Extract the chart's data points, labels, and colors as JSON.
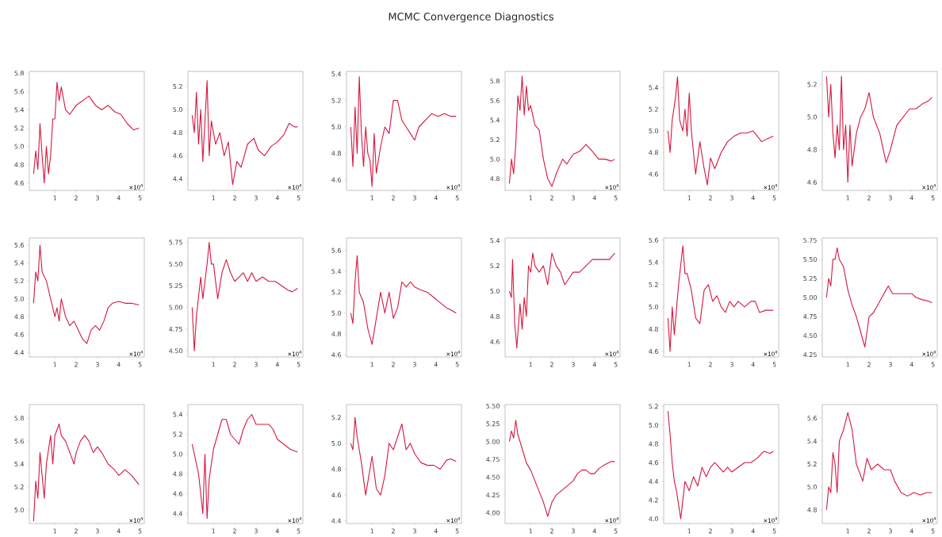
{
  "chart_data": [
    {
      "type": "other",
      "title": "MCMC Convergence Diagnostics"
    },
    {
      "type": "line",
      "annotations": [
        "×10$^{4}$"
      ],
      "color": "#d6173f",
      "xlim": [
        -0.2,
        5.2
      ],
      "ylim": [
        4.52,
        5.82
      ],
      "xticks": [
        1,
        2,
        3,
        4,
        5
      ],
      "yticks": [
        4.6,
        4.8,
        {
          "value": 5,
          "label": "5.0"
        },
        5.2,
        5.4,
        5.6,
        5.8
      ],
      "x": [
        0,
        0.1,
        0.2,
        0.3,
        0.4,
        0.5,
        0.6,
        0.7,
        0.8,
        0.9,
        1.0,
        1.1,
        1.2,
        1.3,
        1.5,
        1.7,
        2.0,
        2.3,
        2.6,
        2.9,
        3.2,
        3.5,
        3.8,
        4.1,
        4.4,
        4.7,
        4.95
      ],
      "values": [
        4.7,
        4.95,
        4.75,
        5.25,
        4.9,
        4.6,
        5.0,
        4.7,
        4.9,
        5.3,
        5.3,
        5.7,
        5.5,
        5.65,
        5.4,
        5.35,
        5.45,
        5.5,
        5.55,
        5.45,
        5.4,
        5.45,
        5.38,
        5.35,
        5.25,
        5.18,
        5.2
      ]
    },
    {
      "type": "line",
      "annotations": [
        "×10$^{4}$"
      ],
      "color": "#d6173f",
      "xlim": [
        -0.2,
        5.2
      ],
      "ylim": [
        4.3,
        5.33
      ],
      "xticks": [
        1,
        2,
        3,
        4,
        5
      ],
      "yticks": [
        4.4,
        4.6,
        4.8,
        {
          "value": 5,
          "label": "5.0"
        },
        5.2
      ],
      "x": [
        0,
        0.1,
        0.2,
        0.3,
        0.4,
        0.5,
        0.6,
        0.7,
        0.8,
        0.9,
        1.1,
        1.3,
        1.5,
        1.7,
        1.9,
        2.1,
        2.3,
        2.6,
        2.9,
        3.1,
        3.4,
        3.7,
        4.0,
        4.3,
        4.55,
        4.8,
        4.95
      ],
      "values": [
        4.95,
        4.8,
        5.15,
        4.7,
        5.0,
        4.55,
        4.9,
        5.25,
        4.6,
        4.9,
        4.7,
        4.8,
        4.6,
        4.72,
        4.35,
        4.55,
        4.5,
        4.7,
        4.75,
        4.65,
        4.6,
        4.68,
        4.72,
        4.78,
        4.88,
        4.85,
        4.85
      ]
    },
    {
      "type": "line",
      "annotations": [
        "×10$^{4}$"
      ],
      "color": "#d6173f",
      "xlim": [
        -0.2,
        5.2
      ],
      "ylim": [
        4.52,
        5.42
      ],
      "xticks": [
        1,
        2,
        3,
        4,
        5
      ],
      "yticks": [
        4.6,
        4.8,
        {
          "value": 5,
          "label": "5.0"
        },
        5.2,
        5.4
      ],
      "x": [
        0,
        0.1,
        0.2,
        0.3,
        0.4,
        0.5,
        0.6,
        0.7,
        0.8,
        0.9,
        1.0,
        1.1,
        1.2,
        1.4,
        1.6,
        1.8,
        2.0,
        2.2,
        2.4,
        2.6,
        2.8,
        3.0,
        3.2,
        3.5,
        3.8,
        4.1,
        4.4,
        4.7,
        4.95
      ],
      "values": [
        5.0,
        4.7,
        5.15,
        4.8,
        5.38,
        4.95,
        4.7,
        5.0,
        4.8,
        4.75,
        4.55,
        4.95,
        4.65,
        4.85,
        5.0,
        4.95,
        5.2,
        5.2,
        5.05,
        5.0,
        4.95,
        4.9,
        5.0,
        5.05,
        5.1,
        5.08,
        5.1,
        5.08,
        5.08
      ]
    },
    {
      "type": "line",
      "annotations": [
        "×10$^{4}$"
      ],
      "color": "#d6173f",
      "xlim": [
        -0.2,
        5.2
      ],
      "ylim": [
        4.68,
        5.9
      ],
      "xticks": [
        1,
        2,
        3,
        4,
        5
      ],
      "yticks": [
        4.8,
        {
          "value": 5,
          "label": "5.0"
        },
        5.2,
        5.4,
        5.6,
        5.8
      ],
      "x": [
        0,
        0.1,
        0.2,
        0.3,
        0.4,
        0.5,
        0.6,
        0.7,
        0.8,
        0.9,
        1.0,
        1.2,
        1.4,
        1.6,
        1.8,
        2.0,
        2.2,
        2.5,
        2.7,
        3.0,
        3.3,
        3.6,
        3.9,
        4.2,
        4.5,
        4.8,
        4.95
      ],
      "values": [
        4.75,
        5.0,
        4.85,
        5.15,
        5.65,
        5.5,
        5.85,
        5.45,
        5.75,
        5.5,
        5.55,
        5.35,
        5.3,
        5.0,
        4.8,
        4.72,
        4.85,
        5.0,
        4.95,
        5.05,
        5.08,
        5.15,
        5.08,
        5.0,
        5.0,
        4.98,
        5.0
      ]
    },
    {
      "type": "line",
      "annotations": [
        "×10$^{4}$"
      ],
      "color": "#d6173f",
      "xlim": [
        -0.2,
        5.2
      ],
      "ylim": [
        4.45,
        5.55
      ],
      "xticks": [
        1,
        2,
        3,
        4,
        5
      ],
      "yticks": [
        4.6,
        4.8,
        {
          "value": 5,
          "label": "5.0"
        },
        5.2,
        5.4
      ],
      "x": [
        0,
        0.1,
        0.2,
        0.35,
        0.45,
        0.55,
        0.7,
        0.8,
        0.9,
        1.0,
        1.1,
        1.2,
        1.3,
        1.5,
        1.7,
        1.85,
        2.0,
        2.2,
        2.5,
        2.8,
        3.1,
        3.4,
        3.7,
        4.0,
        4.2,
        4.4,
        4.7,
        4.95
      ],
      "values": [
        5.0,
        4.8,
        5.1,
        5.3,
        5.5,
        5.1,
        5.0,
        5.2,
        4.95,
        5.35,
        5.0,
        4.8,
        4.6,
        4.9,
        4.65,
        4.5,
        4.75,
        4.65,
        4.8,
        4.9,
        4.95,
        4.98,
        4.98,
        5.0,
        4.95,
        4.9,
        4.93,
        4.95
      ]
    },
    {
      "type": "line",
      "annotations": [
        "×10$^{4}$"
      ],
      "color": "#d6173f",
      "xlim": [
        -0.2,
        5.2
      ],
      "ylim": [
        4.55,
        5.28
      ],
      "xticks": [
        1,
        2,
        3,
        4,
        5
      ],
      "yticks": [
        4.6,
        4.8,
        {
          "value": 5,
          "label": "5.0"
        },
        5.2
      ],
      "x": [
        0,
        0.1,
        0.2,
        0.3,
        0.4,
        0.5,
        0.6,
        0.7,
        0.8,
        0.9,
        1.0,
        1.1,
        1.2,
        1.4,
        1.6,
        1.8,
        2.0,
        2.2,
        2.5,
        2.8,
        3.0,
        3.3,
        3.6,
        3.9,
        4.2,
        4.5,
        4.8,
        4.95
      ],
      "values": [
        5.25,
        5.0,
        5.2,
        4.9,
        4.75,
        4.95,
        4.8,
        5.25,
        4.8,
        4.95,
        4.6,
        4.95,
        4.7,
        4.9,
        5.0,
        5.05,
        5.15,
        5.0,
        4.9,
        4.72,
        4.8,
        4.95,
        5.0,
        5.05,
        5.05,
        5.08,
        5.1,
        5.12
      ]
    },
    {
      "type": "line",
      "annotations": [
        "×10$^{4}$"
      ],
      "color": "#d6173f",
      "xlim": [
        -0.2,
        5.2
      ],
      "ylim": [
        4.35,
        5.68
      ],
      "xticks": [
        1,
        2,
        3,
        4,
        5
      ],
      "yticks": [
        4.4,
        4.6,
        4.8,
        {
          "value": 5,
          "label": "5.0"
        },
        5.2,
        5.4,
        5.6
      ],
      "x": [
        0,
        0.1,
        0.2,
        0.3,
        0.4,
        0.6,
        0.8,
        1.0,
        1.1,
        1.2,
        1.3,
        1.5,
        1.7,
        1.9,
        2.1,
        2.3,
        2.5,
        2.7,
        2.9,
        3.1,
        3.3,
        3.5,
        3.7,
        4.0,
        4.3,
        4.6,
        4.95
      ],
      "values": [
        4.95,
        5.3,
        5.2,
        5.6,
        5.3,
        5.2,
        5.0,
        4.8,
        4.9,
        4.75,
        5.0,
        4.8,
        4.7,
        4.75,
        4.65,
        4.55,
        4.5,
        4.65,
        4.7,
        4.65,
        4.75,
        4.9,
        4.95,
        4.97,
        4.95,
        4.95,
        4.93
      ]
    },
    {
      "type": "line",
      "annotations": [
        "×10$^{4}$"
      ],
      "color": "#d6173f",
      "xlim": [
        -0.2,
        5.2
      ],
      "ylim": [
        4.43,
        5.8
      ],
      "xticks": [
        1,
        2,
        3,
        4,
        5
      ],
      "yticks": [
        {
          "value": 4.5,
          "label": "4.50"
        },
        4.75,
        {
          "value": 5,
          "label": "5.00"
        },
        5.25,
        {
          "value": 5.5,
          "label": "5.50"
        },
        5.75
      ],
      "x": [
        0,
        0.1,
        0.2,
        0.4,
        0.5,
        0.6,
        0.7,
        0.8,
        0.9,
        1.0,
        1.2,
        1.4,
        1.6,
        1.8,
        2.0,
        2.2,
        2.4,
        2.6,
        2.8,
        3.0,
        3.3,
        3.6,
        3.9,
        4.2,
        4.5,
        4.7,
        4.95
      ],
      "values": [
        5.0,
        4.5,
        4.9,
        5.35,
        5.1,
        5.3,
        5.5,
        5.75,
        5.5,
        5.5,
        5.1,
        5.4,
        5.55,
        5.4,
        5.3,
        5.35,
        5.4,
        5.3,
        5.4,
        5.3,
        5.35,
        5.3,
        5.3,
        5.25,
        5.2,
        5.18,
        5.22
      ]
    },
    {
      "type": "line",
      "annotations": [
        "×10$^{4}$"
      ],
      "color": "#d6173f",
      "xlim": [
        -0.2,
        5.2
      ],
      "ylim": [
        4.58,
        5.72
      ],
      "xticks": [
        1,
        2,
        3,
        4,
        5
      ],
      "yticks": [
        4.6,
        4.8,
        {
          "value": 5,
          "label": "5.0"
        },
        5.2,
        5.4,
        5.6
      ],
      "x": [
        0,
        0.1,
        0.2,
        0.3,
        0.4,
        0.6,
        0.8,
        1.0,
        1.2,
        1.4,
        1.6,
        1.8,
        2.0,
        2.2,
        2.4,
        2.6,
        2.8,
        3.0,
        3.3,
        3.6,
        3.9,
        4.2,
        4.5,
        4.7,
        4.95
      ],
      "values": [
        5.0,
        4.9,
        5.3,
        5.55,
        5.2,
        5.1,
        4.85,
        4.7,
        4.95,
        5.2,
        5.0,
        5.2,
        4.95,
        5.05,
        5.3,
        5.25,
        5.3,
        5.25,
        5.22,
        5.2,
        5.15,
        5.1,
        5.05,
        5.03,
        5.0
      ]
    },
    {
      "type": "line",
      "annotations": [
        "×10$^{4}$"
      ],
      "color": "#d6173f",
      "xlim": [
        -0.2,
        5.2
      ],
      "ylim": [
        4.48,
        5.42
      ],
      "xticks": [
        1,
        2,
        3,
        4,
        5
      ],
      "yticks": [
        4.6,
        4.8,
        {
          "value": 5,
          "label": "5.0"
        },
        5.2,
        5.4
      ],
      "x": [
        0,
        0.1,
        0.15,
        0.25,
        0.35,
        0.5,
        0.6,
        0.7,
        0.8,
        0.9,
        1.0,
        1.1,
        1.2,
        1.4,
        1.6,
        1.8,
        2.0,
        2.2,
        2.4,
        2.6,
        2.8,
        3.0,
        3.3,
        3.6,
        3.9,
        4.2,
        4.5,
        4.7,
        4.95
      ],
      "values": [
        5.0,
        4.95,
        5.25,
        4.75,
        4.55,
        4.9,
        4.7,
        4.95,
        4.8,
        5.2,
        5.15,
        5.3,
        5.2,
        5.15,
        5.2,
        5.05,
        5.3,
        5.2,
        5.15,
        5.05,
        5.1,
        5.15,
        5.15,
        5.2,
        5.25,
        5.25,
        5.25,
        5.25,
        5.3
      ]
    },
    {
      "type": "line",
      "annotations": [
        "×10$^{4}$"
      ],
      "color": "#d6173f",
      "xlim": [
        -0.2,
        5.2
      ],
      "ylim": [
        4.55,
        5.62
      ],
      "xticks": [
        1,
        2,
        3,
        4,
        5
      ],
      "yticks": [
        4.6,
        4.8,
        {
          "value": 5,
          "label": "5.0"
        },
        5.2,
        5.4,
        5.6
      ],
      "x": [
        0,
        0.1,
        0.2,
        0.3,
        0.5,
        0.7,
        0.8,
        0.9,
        1.1,
        1.3,
        1.5,
        1.7,
        1.9,
        2.1,
        2.3,
        2.5,
        2.7,
        2.9,
        3.1,
        3.3,
        3.6,
        3.9,
        4.1,
        4.3,
        4.6,
        4.95
      ],
      "values": [
        4.9,
        4.6,
        5.0,
        4.75,
        5.2,
        5.55,
        5.3,
        5.3,
        5.15,
        4.9,
        4.85,
        5.15,
        5.2,
        5.05,
        5.1,
        5.0,
        4.95,
        5.05,
        5.0,
        5.05,
        5.0,
        5.05,
        5.05,
        4.95,
        4.97,
        4.97
      ]
    },
    {
      "type": "line",
      "annotations": [
        "×10$^{4}$"
      ],
      "color": "#d6173f",
      "xlim": [
        -0.2,
        5.2
      ],
      "ylim": [
        4.22,
        5.78
      ],
      "xticks": [
        1,
        2,
        3,
        4,
        5
      ],
      "yticks": [
        4.25,
        {
          "value": 4.5,
          "label": "4.50"
        },
        4.75,
        {
          "value": 5,
          "label": "5.00"
        },
        5.25,
        {
          "value": 5.5,
          "label": "5.50"
        },
        5.75
      ],
      "x": [
        0,
        0.1,
        0.2,
        0.3,
        0.4,
        0.5,
        0.6,
        0.8,
        1.0,
        1.2,
        1.4,
        1.6,
        1.8,
        2.0,
        2.2,
        2.5,
        2.8,
        2.9,
        3.1,
        3.4,
        3.7,
        4.0,
        4.2,
        4.5,
        4.8,
        4.95
      ],
      "values": [
        5.0,
        5.25,
        5.15,
        5.5,
        5.5,
        5.65,
        5.5,
        5.4,
        5.1,
        4.9,
        4.75,
        4.55,
        4.35,
        4.75,
        4.8,
        4.95,
        5.1,
        5.15,
        5.05,
        5.05,
        5.05,
        5.05,
        5.0,
        4.97,
        4.95,
        4.93
      ]
    },
    {
      "type": "line",
      "annotations": [
        "×10$^{4}$"
      ],
      "color": "#d6173f",
      "xlim": [
        -0.2,
        5.2
      ],
      "ylim": [
        4.88,
        5.92
      ],
      "xticks": [
        1,
        2,
        3,
        4,
        5
      ],
      "yticks": [
        {
          "value": 5,
          "label": "5.0"
        },
        5.2,
        5.4,
        5.6,
        5.8
      ],
      "x": [
        0,
        0.1,
        0.2,
        0.3,
        0.4,
        0.5,
        0.6,
        0.8,
        0.9,
        1.0,
        1.1,
        1.2,
        1.3,
        1.5,
        1.7,
        1.9,
        2.0,
        2.2,
        2.4,
        2.6,
        2.8,
        3.0,
        3.2,
        3.5,
        3.8,
        4.0,
        4.3,
        4.6,
        4.95
      ],
      "values": [
        4.9,
        5.25,
        5.1,
        5.5,
        5.3,
        5.1,
        5.4,
        5.65,
        5.4,
        5.65,
        5.7,
        5.75,
        5.65,
        5.6,
        5.5,
        5.4,
        5.5,
        5.6,
        5.65,
        5.6,
        5.5,
        5.55,
        5.5,
        5.4,
        5.35,
        5.3,
        5.35,
        5.3,
        5.22
      ]
    },
    {
      "type": "line",
      "annotations": [
        "×10$^{4}$"
      ],
      "color": "#d6173f",
      "xlim": [
        -0.2,
        5.2
      ],
      "ylim": [
        4.3,
        5.5
      ],
      "xticks": [
        1,
        2,
        3,
        4,
        5
      ],
      "yticks": [
        4.4,
        4.6,
        4.8,
        {
          "value": 5,
          "label": "5.0"
        },
        5.2,
        5.4
      ],
      "x": [
        0,
        0.1,
        0.3,
        0.4,
        0.5,
        0.6,
        0.7,
        0.8,
        1.0,
        1.2,
        1.4,
        1.6,
        1.8,
        2.0,
        2.2,
        2.4,
        2.6,
        2.8,
        3.0,
        3.2,
        3.4,
        3.6,
        3.8,
        4.0,
        4.3,
        4.6,
        4.95
      ],
      "values": [
        5.1,
        5.0,
        4.8,
        4.6,
        4.4,
        5.0,
        4.35,
        4.75,
        5.05,
        5.2,
        5.35,
        5.35,
        5.2,
        5.15,
        5.1,
        5.25,
        5.35,
        5.4,
        5.3,
        5.3,
        5.3,
        5.3,
        5.25,
        5.15,
        5.1,
        5.05,
        5.02
      ]
    },
    {
      "type": "line",
      "annotations": [
        "×10$^{4}$"
      ],
      "color": "#d6173f",
      "xlim": [
        -0.2,
        5.2
      ],
      "ylim": [
        4.38,
        5.3
      ],
      "xticks": [
        1,
        2,
        3,
        4,
        5
      ],
      "yticks": [
        4.4,
        4.6,
        4.8,
        {
          "value": 5,
          "label": "5.0"
        },
        5.2
      ],
      "x": [
        0,
        0.1,
        0.2,
        0.3,
        0.5,
        0.7,
        0.8,
        1.0,
        1.2,
        1.4,
        1.6,
        1.8,
        2.0,
        2.2,
        2.4,
        2.6,
        2.8,
        3.0,
        3.3,
        3.6,
        3.9,
        4.2,
        4.5,
        4.7,
        4.95
      ],
      "values": [
        5.0,
        4.95,
        5.2,
        5.05,
        4.85,
        4.6,
        4.7,
        4.9,
        4.65,
        4.6,
        4.75,
        5.0,
        4.95,
        5.05,
        5.15,
        4.95,
        5.0,
        4.92,
        4.85,
        4.83,
        4.83,
        4.8,
        4.87,
        4.88,
        4.86
      ]
    },
    {
      "type": "line",
      "annotations": [
        "×10$^{4}$"
      ],
      "color": "#d6173f",
      "xlim": [
        -0.2,
        5.2
      ],
      "ylim": [
        3.85,
        5.52
      ],
      "xticks": [
        1,
        2,
        3,
        4,
        5
      ],
      "yticks": [
        {
          "value": 4,
          "label": "4.00"
        },
        4.25,
        {
          "value": 4.5,
          "label": "4.50"
        },
        4.75,
        {
          "value": 5,
          "label": "5.00"
        },
        5.25,
        {
          "value": 5.5,
          "label": "5.50"
        }
      ],
      "x": [
        0,
        0.1,
        0.2,
        0.3,
        0.4,
        0.6,
        0.8,
        1.0,
        1.2,
        1.4,
        1.6,
        1.8,
        2.0,
        2.2,
        2.4,
        2.6,
        2.8,
        3.0,
        3.2,
        3.4,
        3.6,
        3.8,
        4.0,
        4.2,
        4.5,
        4.8,
        4.95
      ],
      "values": [
        5.0,
        5.15,
        5.05,
        5.3,
        5.1,
        4.9,
        4.7,
        4.6,
        4.45,
        4.3,
        4.15,
        3.95,
        4.15,
        4.25,
        4.3,
        4.35,
        4.4,
        4.45,
        4.55,
        4.6,
        4.6,
        4.55,
        4.55,
        4.62,
        4.68,
        4.72,
        4.72
      ]
    },
    {
      "type": "line",
      "annotations": [
        "×10$^{4}$"
      ],
      "color": "#d6173f",
      "xlim": [
        -0.2,
        5.2
      ],
      "ylim": [
        3.95,
        5.22
      ],
      "xticks": [
        1,
        2,
        3,
        4,
        5
      ],
      "yticks": [
        {
          "value": 4,
          "label": "4.0"
        },
        4.2,
        4.4,
        4.6,
        4.8,
        {
          "value": 5,
          "label": "5.0"
        },
        5.2
      ],
      "x": [
        0,
        0.1,
        0.2,
        0.3,
        0.4,
        0.5,
        0.6,
        0.8,
        1.0,
        1.2,
        1.4,
        1.6,
        1.8,
        2.0,
        2.2,
        2.4,
        2.6,
        2.8,
        3.0,
        3.3,
        3.6,
        3.9,
        4.2,
        4.5,
        4.8,
        4.95
      ],
      "values": [
        5.15,
        4.9,
        4.6,
        4.4,
        4.3,
        4.15,
        4.0,
        4.4,
        4.3,
        4.45,
        4.35,
        4.55,
        4.45,
        4.55,
        4.6,
        4.55,
        4.5,
        4.55,
        4.5,
        4.55,
        4.6,
        4.6,
        4.65,
        4.72,
        4.7,
        4.72
      ]
    },
    {
      "type": "line",
      "annotations": [
        "×10$^{4}$"
      ],
      "color": "#d6173f",
      "xlim": [
        -0.2,
        5.2
      ],
      "ylim": [
        4.68,
        5.72
      ],
      "xticks": [
        1,
        2,
        3,
        4,
        5
      ],
      "yticks": [
        4.8,
        {
          "value": 5,
          "label": "5.0"
        },
        5.2,
        5.4,
        5.6
      ],
      "x": [
        0,
        0.1,
        0.2,
        0.3,
        0.4,
        0.5,
        0.6,
        0.8,
        1.0,
        1.2,
        1.4,
        1.6,
        1.7,
        1.9,
        2.1,
        2.4,
        2.7,
        3.0,
        3.2,
        3.5,
        3.8,
        4.1,
        4.4,
        4.7,
        4.95
      ],
      "values": [
        4.8,
        5.0,
        4.95,
        5.3,
        5.2,
        4.95,
        5.4,
        5.5,
        5.65,
        5.5,
        5.2,
        5.1,
        5.05,
        5.25,
        5.15,
        5.2,
        5.15,
        5.15,
        5.05,
        4.95,
        4.92,
        4.95,
        4.93,
        4.95,
        4.95
      ]
    }
  ]
}
